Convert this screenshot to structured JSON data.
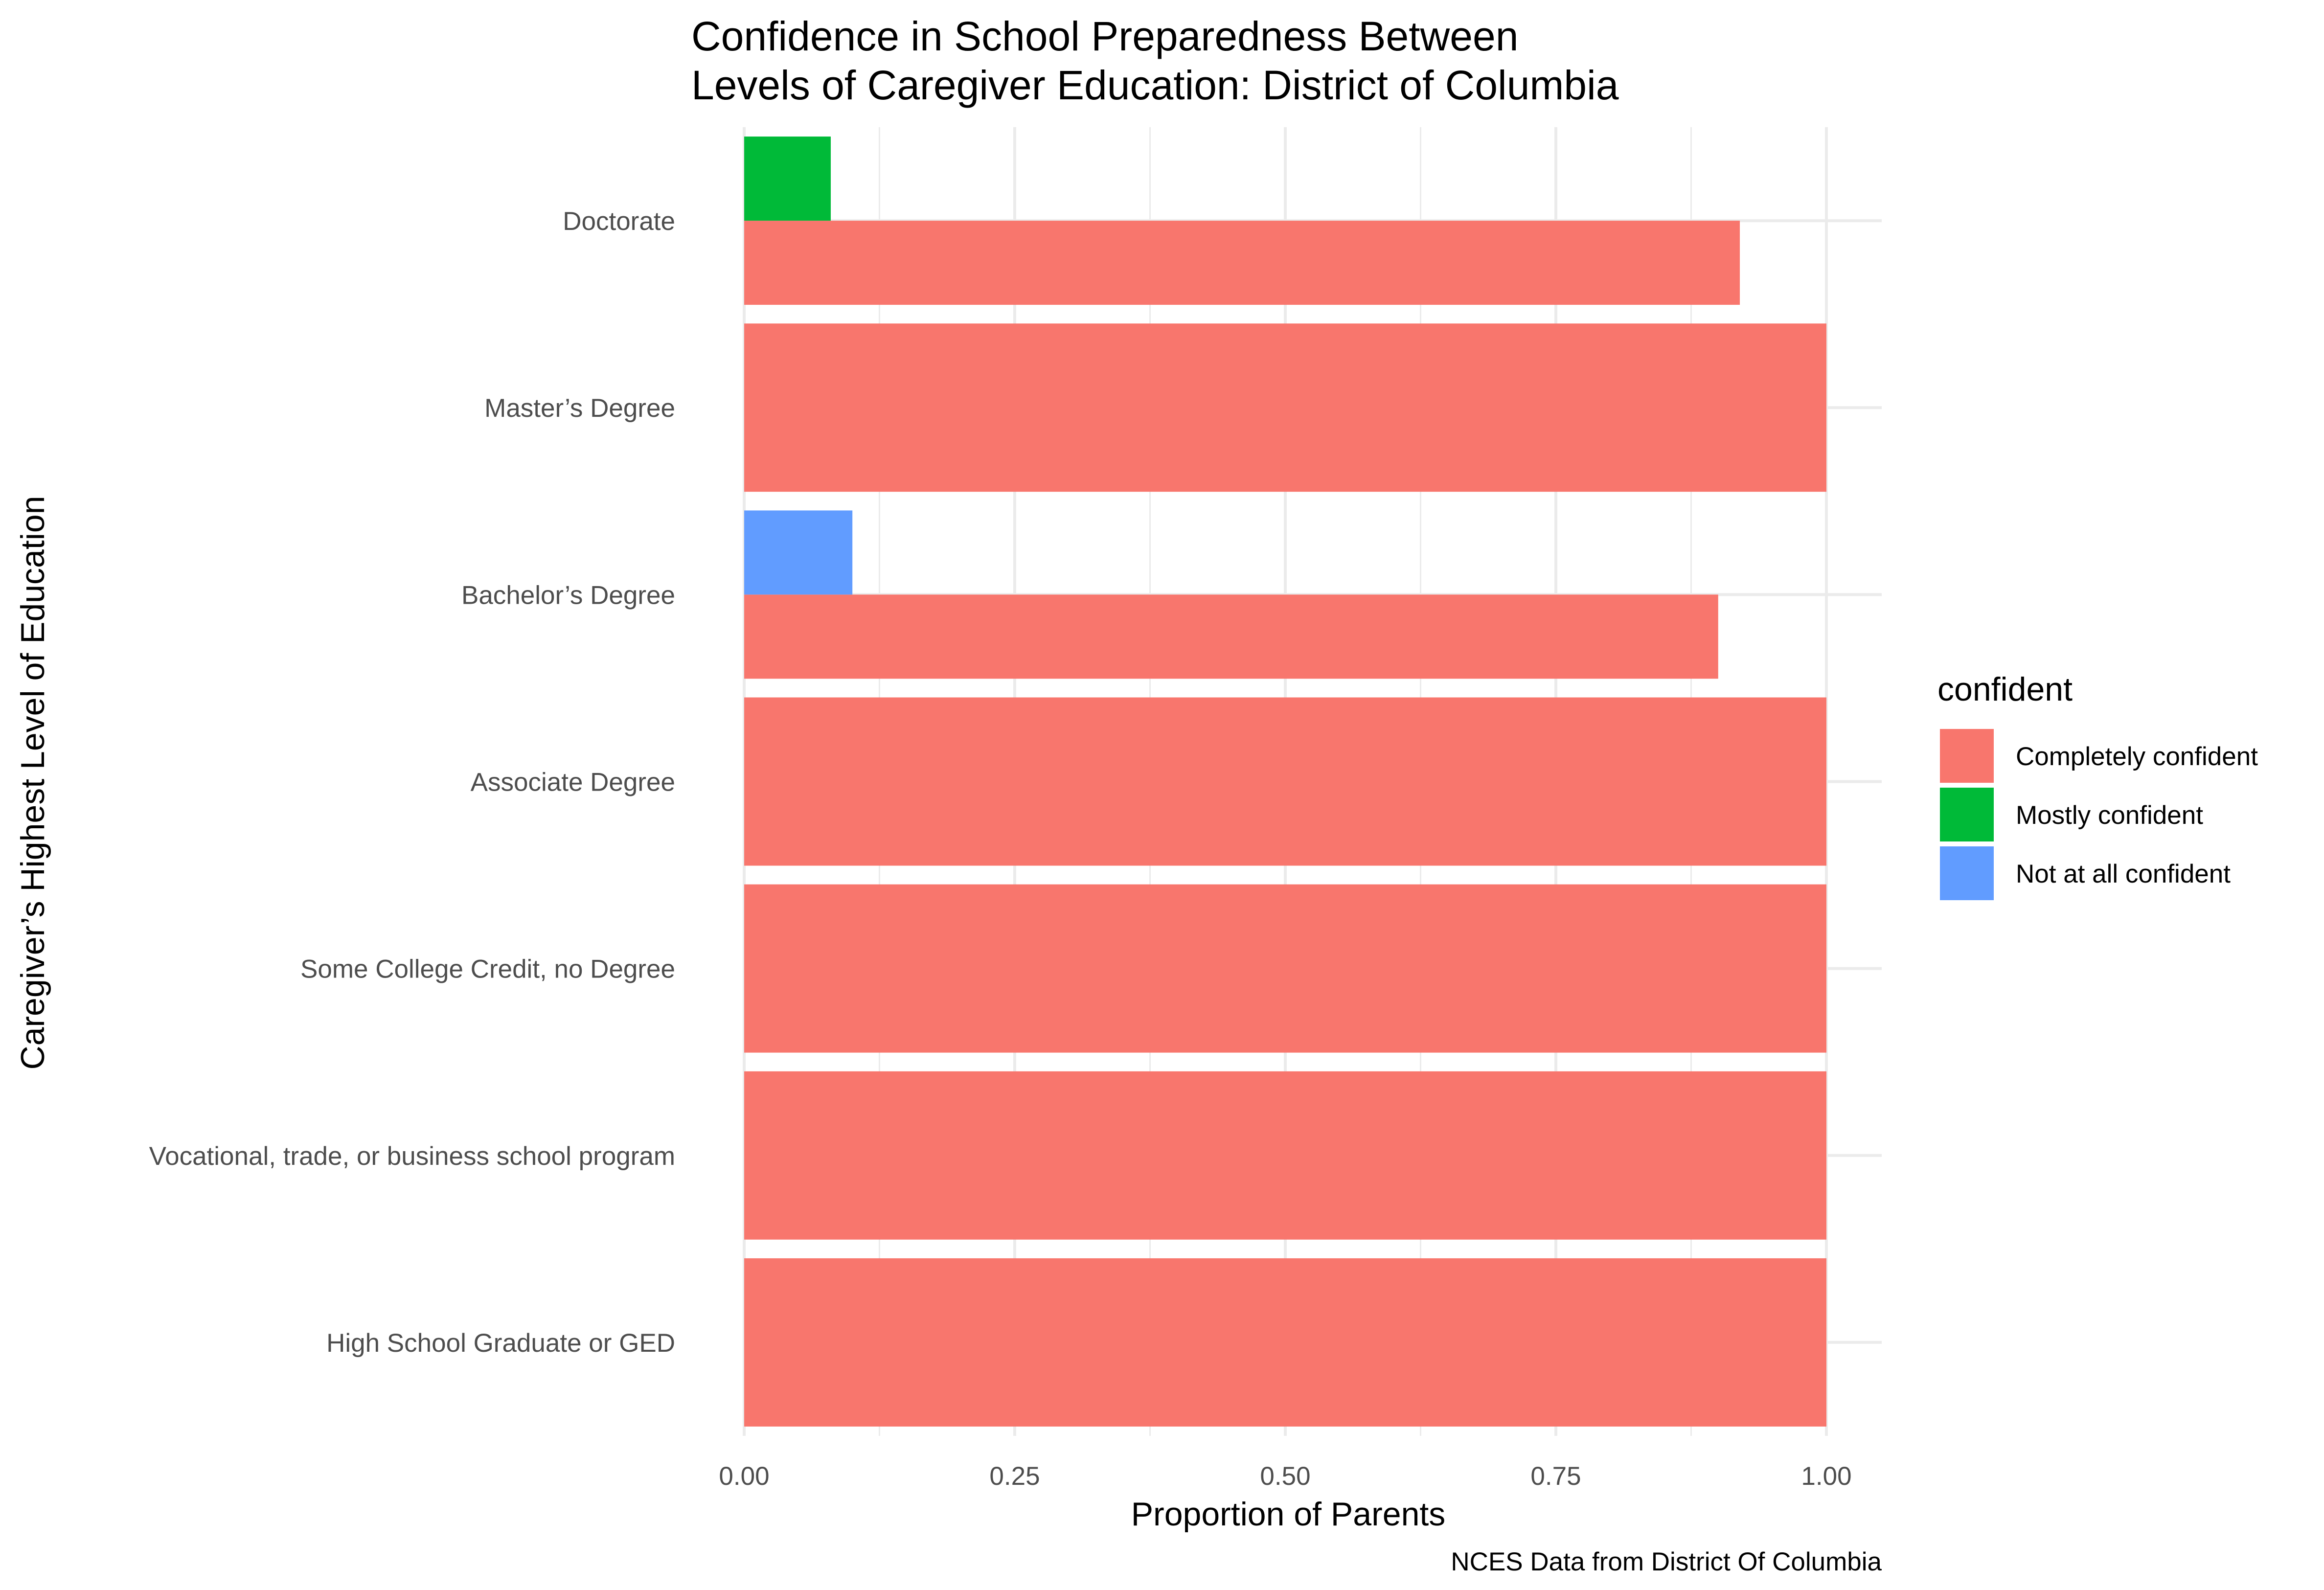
{
  "chart_data": {
    "type": "bar",
    "orientation": "horizontal",
    "position": "dodge",
    "title": "Confidence in School Preparedness Between\nLevels of Caregiver Education: District of Columbia",
    "xlabel": "Proportion of Parents",
    "ylabel": "Caregiver’s Highest Level of Education",
    "caption": "NCES Data from District Of Columbia",
    "xlim": [
      0,
      1.05
    ],
    "xticks": [
      0,
      0.25,
      0.5,
      0.75,
      1
    ],
    "xtick_labels": [
      "0.00",
      "0.25",
      "0.50",
      "0.75",
      "1.00"
    ],
    "grid": true,
    "categories": [
      "Doctorate",
      "Master’s Degree",
      "Bachelor’s Degree",
      "Associate Degree",
      "Some College Credit, no Degree",
      "Vocational, trade, or business school program",
      "High School Graduate or GED"
    ],
    "legend": {
      "title": "confident",
      "placement": "right"
    },
    "series": [
      {
        "name": "Completely confident",
        "color": "#F8766D",
        "values": [
          0.92,
          1.0,
          0.9,
          1.0,
          1.0,
          1.0,
          1.0
        ]
      },
      {
        "name": "Mostly confident",
        "color": "#00BA38",
        "values": [
          0.08,
          null,
          null,
          null,
          null,
          null,
          null
        ]
      },
      {
        "name": "Not at all confident",
        "color": "#619CFF",
        "values": [
          null,
          null,
          0.1,
          null,
          null,
          null,
          null
        ]
      }
    ]
  }
}
